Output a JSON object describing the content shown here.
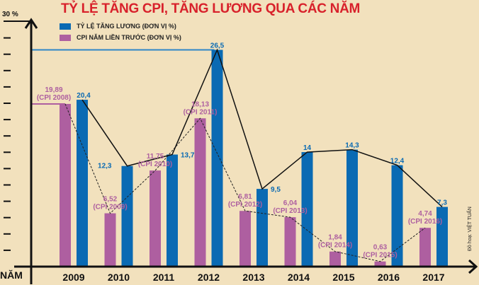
{
  "chart_data": {
    "type": "bar",
    "title": "TỶ LỆ TĂNG CPI, TĂNG LƯƠNG QUA CÁC NĂM",
    "xlabel": "NĂM",
    "ylabel": "30 %",
    "ylim": [
      0,
      30
    ],
    "categories": [
      "2009",
      "2010",
      "2011",
      "2012",
      "2013",
      "2014",
      "2015",
      "2016",
      "2017"
    ],
    "series": [
      {
        "name": "CPI NĂM LIỀN TRƯỚC (ĐƠN VỊ %)",
        "color": "#ae5fa0",
        "values": [
          19.89,
          6.52,
          11.75,
          18.13,
          6.81,
          6.04,
          1.84,
          0.63,
          4.74
        ],
        "labels": [
          "19,89",
          "6,52",
          "11,75",
          "18,13",
          "6,81",
          "6,04",
          "1,84",
          "0,63",
          "4,74"
        ],
        "sublabels": [
          "(CPI 2008)",
          "(CPI 2009)",
          "(CPI 2010)",
          "(CPI 2011)",
          "(CPI 2012)",
          "(CPI 2013)",
          "(CPI 2014)",
          "(CPI 2015)",
          "(CPI 2016)"
        ],
        "line": "dashed"
      },
      {
        "name": "TỶ LỆ TĂNG LƯƠNG (ĐƠN VỊ %)",
        "color": "#0a6ab3",
        "values": [
          20.4,
          12.3,
          13.7,
          26.5,
          9.5,
          14,
          14.3,
          12.4,
          7.3
        ],
        "labels": [
          "20,4",
          "12,3",
          "13,7",
          "26,5",
          "9,5",
          "14",
          "14,3",
          "12,4",
          "7,3"
        ],
        "line": "solid"
      }
    ],
    "legend": "top-left",
    "credit": "Đồ hoạ: VIỆT TUẤN"
  }
}
